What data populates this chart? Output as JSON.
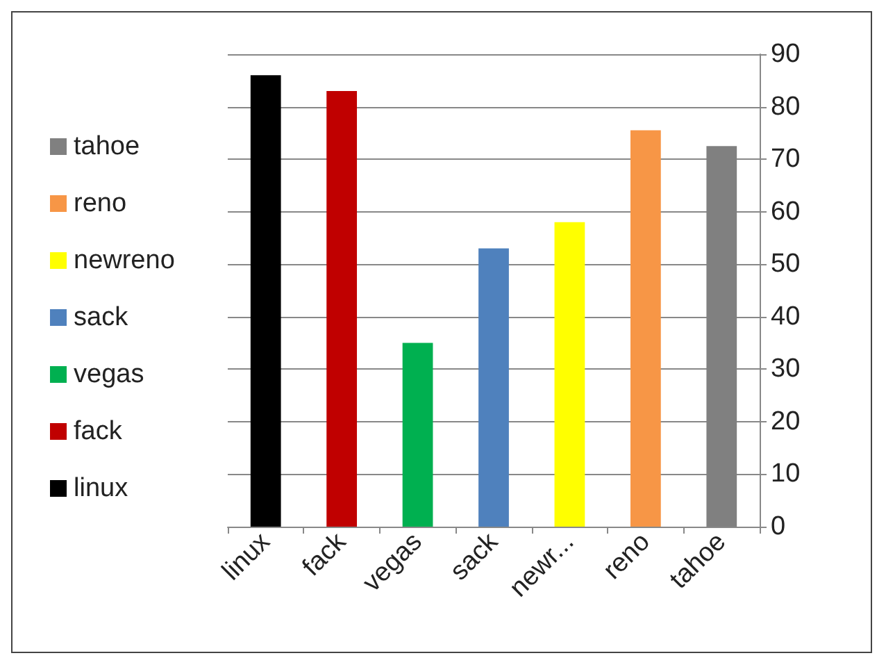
{
  "chart_data": {
    "type": "bar",
    "categories": [
      "linux",
      "fack",
      "vegas",
      "sack",
      "newr...",
      "reno",
      "tahoe"
    ],
    "series": [
      {
        "name": "linux",
        "color": "#000000",
        "values": [
          86,
          null,
          null,
          null,
          null,
          null,
          null
        ]
      },
      {
        "name": "fack",
        "color": "#c00000",
        "values": [
          null,
          83,
          null,
          null,
          null,
          null,
          null
        ]
      },
      {
        "name": "vegas",
        "color": "#00b050",
        "values": [
          null,
          null,
          35,
          null,
          null,
          null,
          null
        ]
      },
      {
        "name": "sack",
        "color": "#4f81bd",
        "values": [
          null,
          null,
          null,
          53,
          null,
          null,
          null
        ]
      },
      {
        "name": "newreno",
        "color": "#ffff00",
        "values": [
          null,
          null,
          null,
          null,
          58,
          null,
          null
        ]
      },
      {
        "name": "reno",
        "color": "#f79646",
        "values": [
          null,
          null,
          null,
          null,
          null,
          75.5,
          null
        ]
      },
      {
        "name": "tahoe",
        "color": "#808080",
        "values": [
          null,
          null,
          null,
          null,
          null,
          null,
          72.5
        ]
      }
    ],
    "stacked": true,
    "ylim": [
      0,
      90
    ],
    "yticks": [
      0,
      10,
      20,
      30,
      40,
      50,
      60,
      70,
      80,
      90
    ],
    "grid": "y",
    "legend": "left"
  }
}
